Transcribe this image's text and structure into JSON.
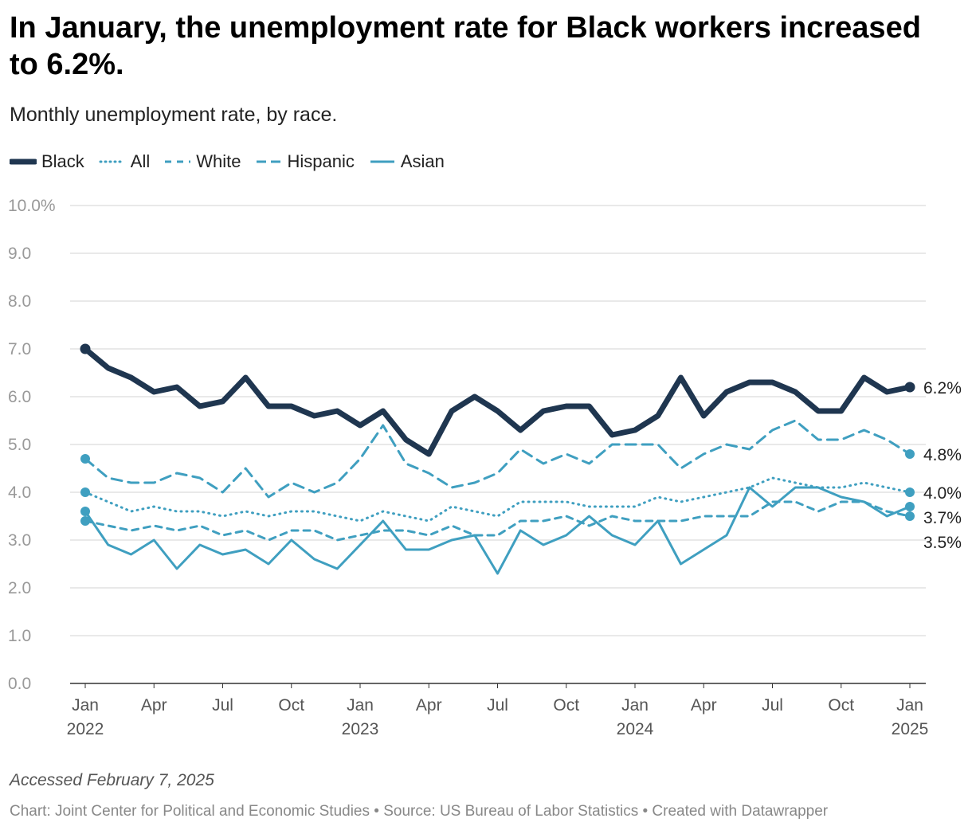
{
  "title": "In January, the unemployment rate for Black workers increased to 6.2%.",
  "subtitle": "Monthly unemployment rate, by race.",
  "notes": "Accessed February 7, 2025",
  "byline": "Chart: Joint Center for Political and Economic Studies • Source: US Bureau of Labor Statistics • Created with Datawrapper",
  "colors": {
    "black_series": "#1f3650",
    "light_series": "#3f9fc0",
    "grid": "#e2e2e2",
    "axis": "#333333"
  },
  "chart_data": {
    "type": "line",
    "ylim": [
      0,
      10
    ],
    "y_ticks": [
      {
        "value": 0,
        "label": "0.0"
      },
      {
        "value": 1,
        "label": "1.0"
      },
      {
        "value": 2,
        "label": "2.0"
      },
      {
        "value": 3,
        "label": "3.0"
      },
      {
        "value": 4,
        "label": "4.0"
      },
      {
        "value": 5,
        "label": "5.0"
      },
      {
        "value": 6,
        "label": "6.0"
      },
      {
        "value": 7,
        "label": "7.0"
      },
      {
        "value": 8,
        "label": "8.0"
      },
      {
        "value": 9,
        "label": "9.0"
      },
      {
        "value": 10,
        "label": "10.0%"
      }
    ],
    "x_ticks": [
      {
        "index": 0,
        "label": "Jan",
        "year": "2022"
      },
      {
        "index": 3,
        "label": "Apr",
        "year": ""
      },
      {
        "index": 6,
        "label": "Jul",
        "year": ""
      },
      {
        "index": 9,
        "label": "Oct",
        "year": ""
      },
      {
        "index": 12,
        "label": "Jan",
        "year": "2023"
      },
      {
        "index": 15,
        "label": "Apr",
        "year": ""
      },
      {
        "index": 18,
        "label": "Jul",
        "year": ""
      },
      {
        "index": 21,
        "label": "Oct",
        "year": ""
      },
      {
        "index": 24,
        "label": "Jan",
        "year": "2024"
      },
      {
        "index": 27,
        "label": "Apr",
        "year": ""
      },
      {
        "index": 30,
        "label": "Jul",
        "year": ""
      },
      {
        "index": 33,
        "label": "Oct",
        "year": ""
      },
      {
        "index": 36,
        "label": "Jan",
        "year": "2025"
      }
    ],
    "x_start": "Jan 2022",
    "x_end": "Jan 2025",
    "series": [
      {
        "name": "Black",
        "style": "solid-thick",
        "end_label": "6.2%",
        "values": [
          7.0,
          6.6,
          6.4,
          6.1,
          6.2,
          5.8,
          5.9,
          6.4,
          5.8,
          5.8,
          5.6,
          5.7,
          5.4,
          5.7,
          5.1,
          4.8,
          5.7,
          6.0,
          5.7,
          5.3,
          5.7,
          5.8,
          5.8,
          5.2,
          5.3,
          5.6,
          6.4,
          5.6,
          6.1,
          6.3,
          6.3,
          6.1,
          5.7,
          5.7,
          6.4,
          6.1,
          6.2
        ]
      },
      {
        "name": "All",
        "style": "dotted",
        "end_label": "4.0%",
        "values": [
          4.0,
          3.8,
          3.6,
          3.7,
          3.6,
          3.6,
          3.5,
          3.6,
          3.5,
          3.6,
          3.6,
          3.5,
          3.4,
          3.6,
          3.5,
          3.4,
          3.7,
          3.6,
          3.5,
          3.8,
          3.8,
          3.8,
          3.7,
          3.7,
          3.7,
          3.9,
          3.8,
          3.9,
          4.0,
          4.1,
          4.3,
          4.2,
          4.1,
          4.1,
          4.2,
          4.1,
          4.0
        ]
      },
      {
        "name": "White",
        "style": "dashed-short",
        "end_label": "3.5%",
        "values": [
          3.4,
          3.3,
          3.2,
          3.3,
          3.2,
          3.3,
          3.1,
          3.2,
          3.0,
          3.2,
          3.2,
          3.0,
          3.1,
          3.2,
          3.2,
          3.1,
          3.3,
          3.1,
          3.1,
          3.4,
          3.4,
          3.5,
          3.3,
          3.5,
          3.4,
          3.4,
          3.4,
          3.5,
          3.5,
          3.5,
          3.8,
          3.8,
          3.6,
          3.8,
          3.8,
          3.6,
          3.5
        ]
      },
      {
        "name": "Hispanic",
        "style": "dashed-long",
        "end_label": "4.8%",
        "values": [
          4.7,
          4.3,
          4.2,
          4.2,
          4.4,
          4.3,
          4.0,
          4.5,
          3.9,
          4.2,
          4.0,
          4.2,
          4.7,
          5.4,
          4.6,
          4.4,
          4.1,
          4.2,
          4.4,
          4.9,
          4.6,
          4.8,
          4.6,
          5.0,
          5.0,
          5.0,
          4.5,
          4.8,
          5.0,
          4.9,
          5.3,
          5.5,
          5.1,
          5.1,
          5.3,
          5.1,
          4.8
        ]
      },
      {
        "name": "Asian",
        "style": "solid-thin",
        "end_label": "3.7%",
        "values": [
          3.6,
          2.9,
          2.7,
          3.0,
          2.4,
          2.9,
          2.7,
          2.8,
          2.5,
          3.0,
          2.6,
          2.4,
          2.9,
          3.4,
          2.8,
          2.8,
          3.0,
          3.1,
          2.3,
          3.2,
          2.9,
          3.1,
          3.5,
          3.1,
          2.9,
          3.4,
          2.5,
          2.8,
          3.1,
          4.1,
          3.7,
          4.1,
          4.1,
          3.9,
          3.8,
          3.5,
          3.7
        ]
      }
    ]
  }
}
